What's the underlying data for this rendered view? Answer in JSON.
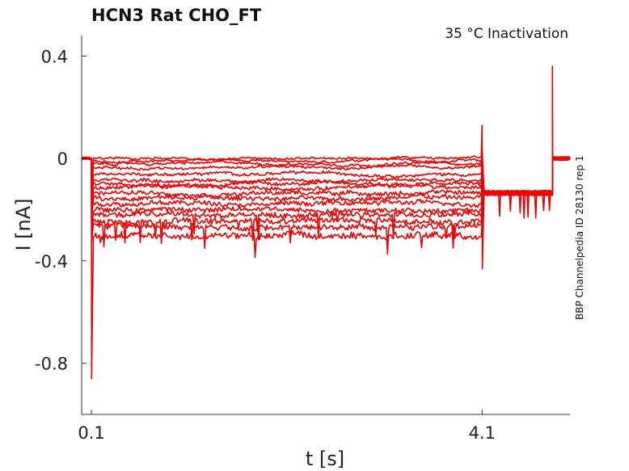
{
  "chart_data": {
    "type": "line",
    "title": "HCN3  Rat  CHO_FT",
    "annotation": "35 °C  Inactivation",
    "side_label": "BBP Channelpedia ID 28130 rep 1",
    "xlabel": "t [s]",
    "ylabel": "I [nA]",
    "xlim": [
      0.0,
      5.0
    ],
    "ylim": [
      -1.0,
      0.48
    ],
    "xticks": [
      0.1,
      4.1
    ],
    "xtick_labels": [
      "0.1",
      "4.1"
    ],
    "yticks": [
      0.4,
      0,
      -0.4,
      -0.8
    ],
    "ytick_labels": [
      "0.4",
      "0",
      "-0.4",
      "-0.8"
    ],
    "grid": false,
    "legend": "none",
    "color": "#ee0000",
    "step_start": 0.1,
    "step_end": 4.1,
    "tail_end": 4.82,
    "baseline": 0.0,
    "tail_level": -0.135,
    "step_levels": [
      0.0,
      -0.01,
      -0.02,
      -0.035,
      -0.06,
      -0.085,
      -0.1,
      -0.115,
      -0.135,
      -0.155,
      -0.175,
      -0.2,
      -0.22,
      -0.245,
      -0.265,
      -0.3
    ],
    "onset_spike_min": -0.86,
    "offset_spike_max": 0.13,
    "offset_spike_min": -0.43,
    "final_spike_max": 0.36
  }
}
